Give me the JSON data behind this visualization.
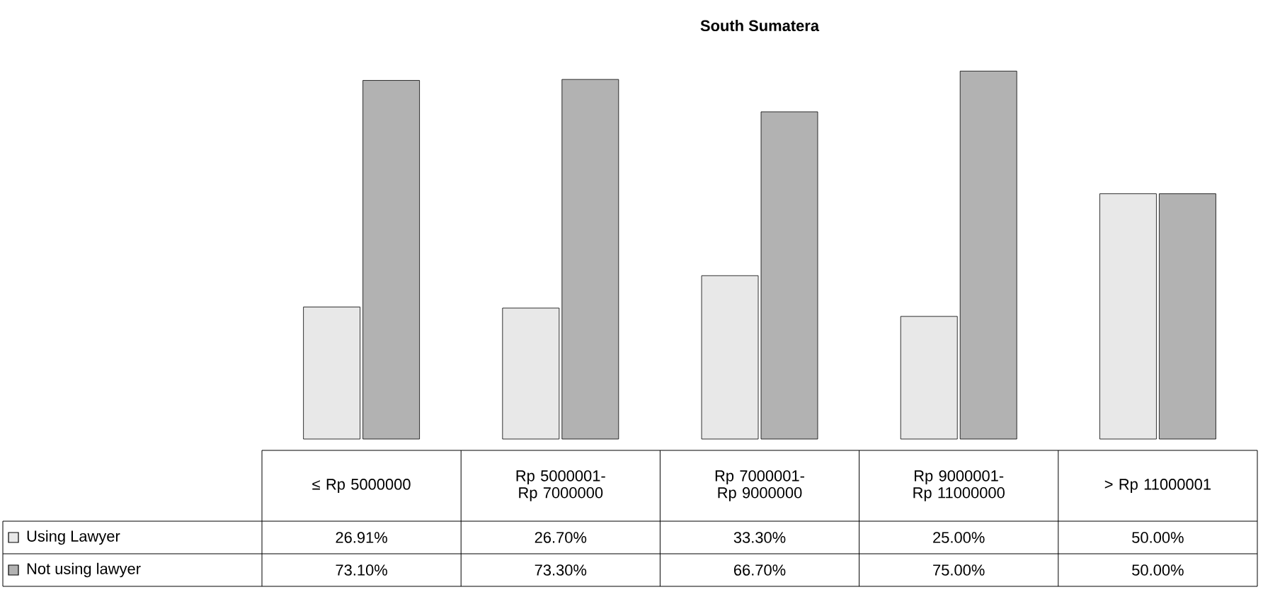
{
  "chart_data": {
    "type": "bar",
    "title": "South Sumatera",
    "categories": [
      "≤ Rp 5000000",
      "Rp 5000001- Rp 7000000",
      "Rp 7000001- Rp 9000000",
      "Rp 9000001- Rp 11000000",
      "> Rp 11000001"
    ],
    "series": [
      {
        "name": "Using Lawyer",
        "color": "#e8e8e8",
        "values": [
          26.91,
          26.7,
          33.3,
          25.0,
          50.0
        ],
        "value_labels": [
          "26.91%",
          "26.70%",
          "33.30%",
          "25.00%",
          "50.00%"
        ]
      },
      {
        "name": "Not using lawyer",
        "color": "#b2b2b2",
        "values": [
          73.1,
          73.3,
          66.7,
          75.0,
          50.0
        ],
        "value_labels": [
          "73.10%",
          "73.30%",
          "66.70%",
          "75.00%",
          "50.00%"
        ]
      }
    ],
    "legend": "bottom left"
  }
}
